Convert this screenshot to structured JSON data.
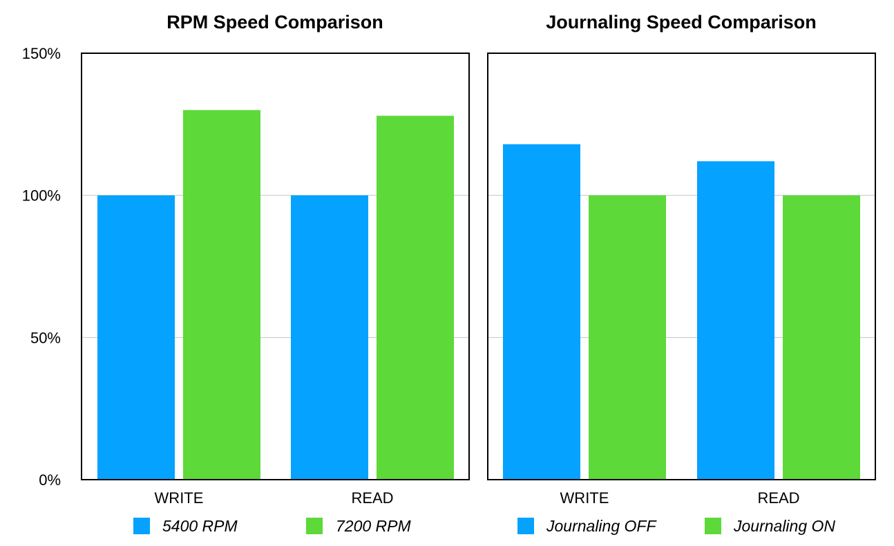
{
  "chart_data": [
    {
      "type": "bar",
      "title": "RPM Speed Comparison",
      "xlabel": "",
      "ylabel": "",
      "categories": [
        "WRITE",
        "READ"
      ],
      "ylim": [
        0,
        150
      ],
      "yticks": [
        "0%",
        "50%",
        "100%",
        "150%"
      ],
      "ytick_values": [
        0,
        50,
        100,
        150
      ],
      "grid": true,
      "legend": "bottom",
      "series": [
        {
          "name": "5400 RPM",
          "color": "#05a2ff",
          "values": [
            100,
            100
          ]
        },
        {
          "name": "7200 RPM",
          "color": "#5dd939",
          "values": [
            130,
            128
          ]
        }
      ]
    },
    {
      "type": "bar",
      "title": "Journaling Speed Comparison",
      "xlabel": "",
      "ylabel": "",
      "categories": [
        "WRITE",
        "READ"
      ],
      "ylim": [
        0,
        150
      ],
      "grid": true,
      "legend": "bottom",
      "series": [
        {
          "name": "Journaling OFF",
          "color": "#05a2ff",
          "values": [
            118,
            112
          ]
        },
        {
          "name": "Journaling ON",
          "color": "#5dd939",
          "values": [
            100,
            100
          ]
        }
      ]
    }
  ]
}
